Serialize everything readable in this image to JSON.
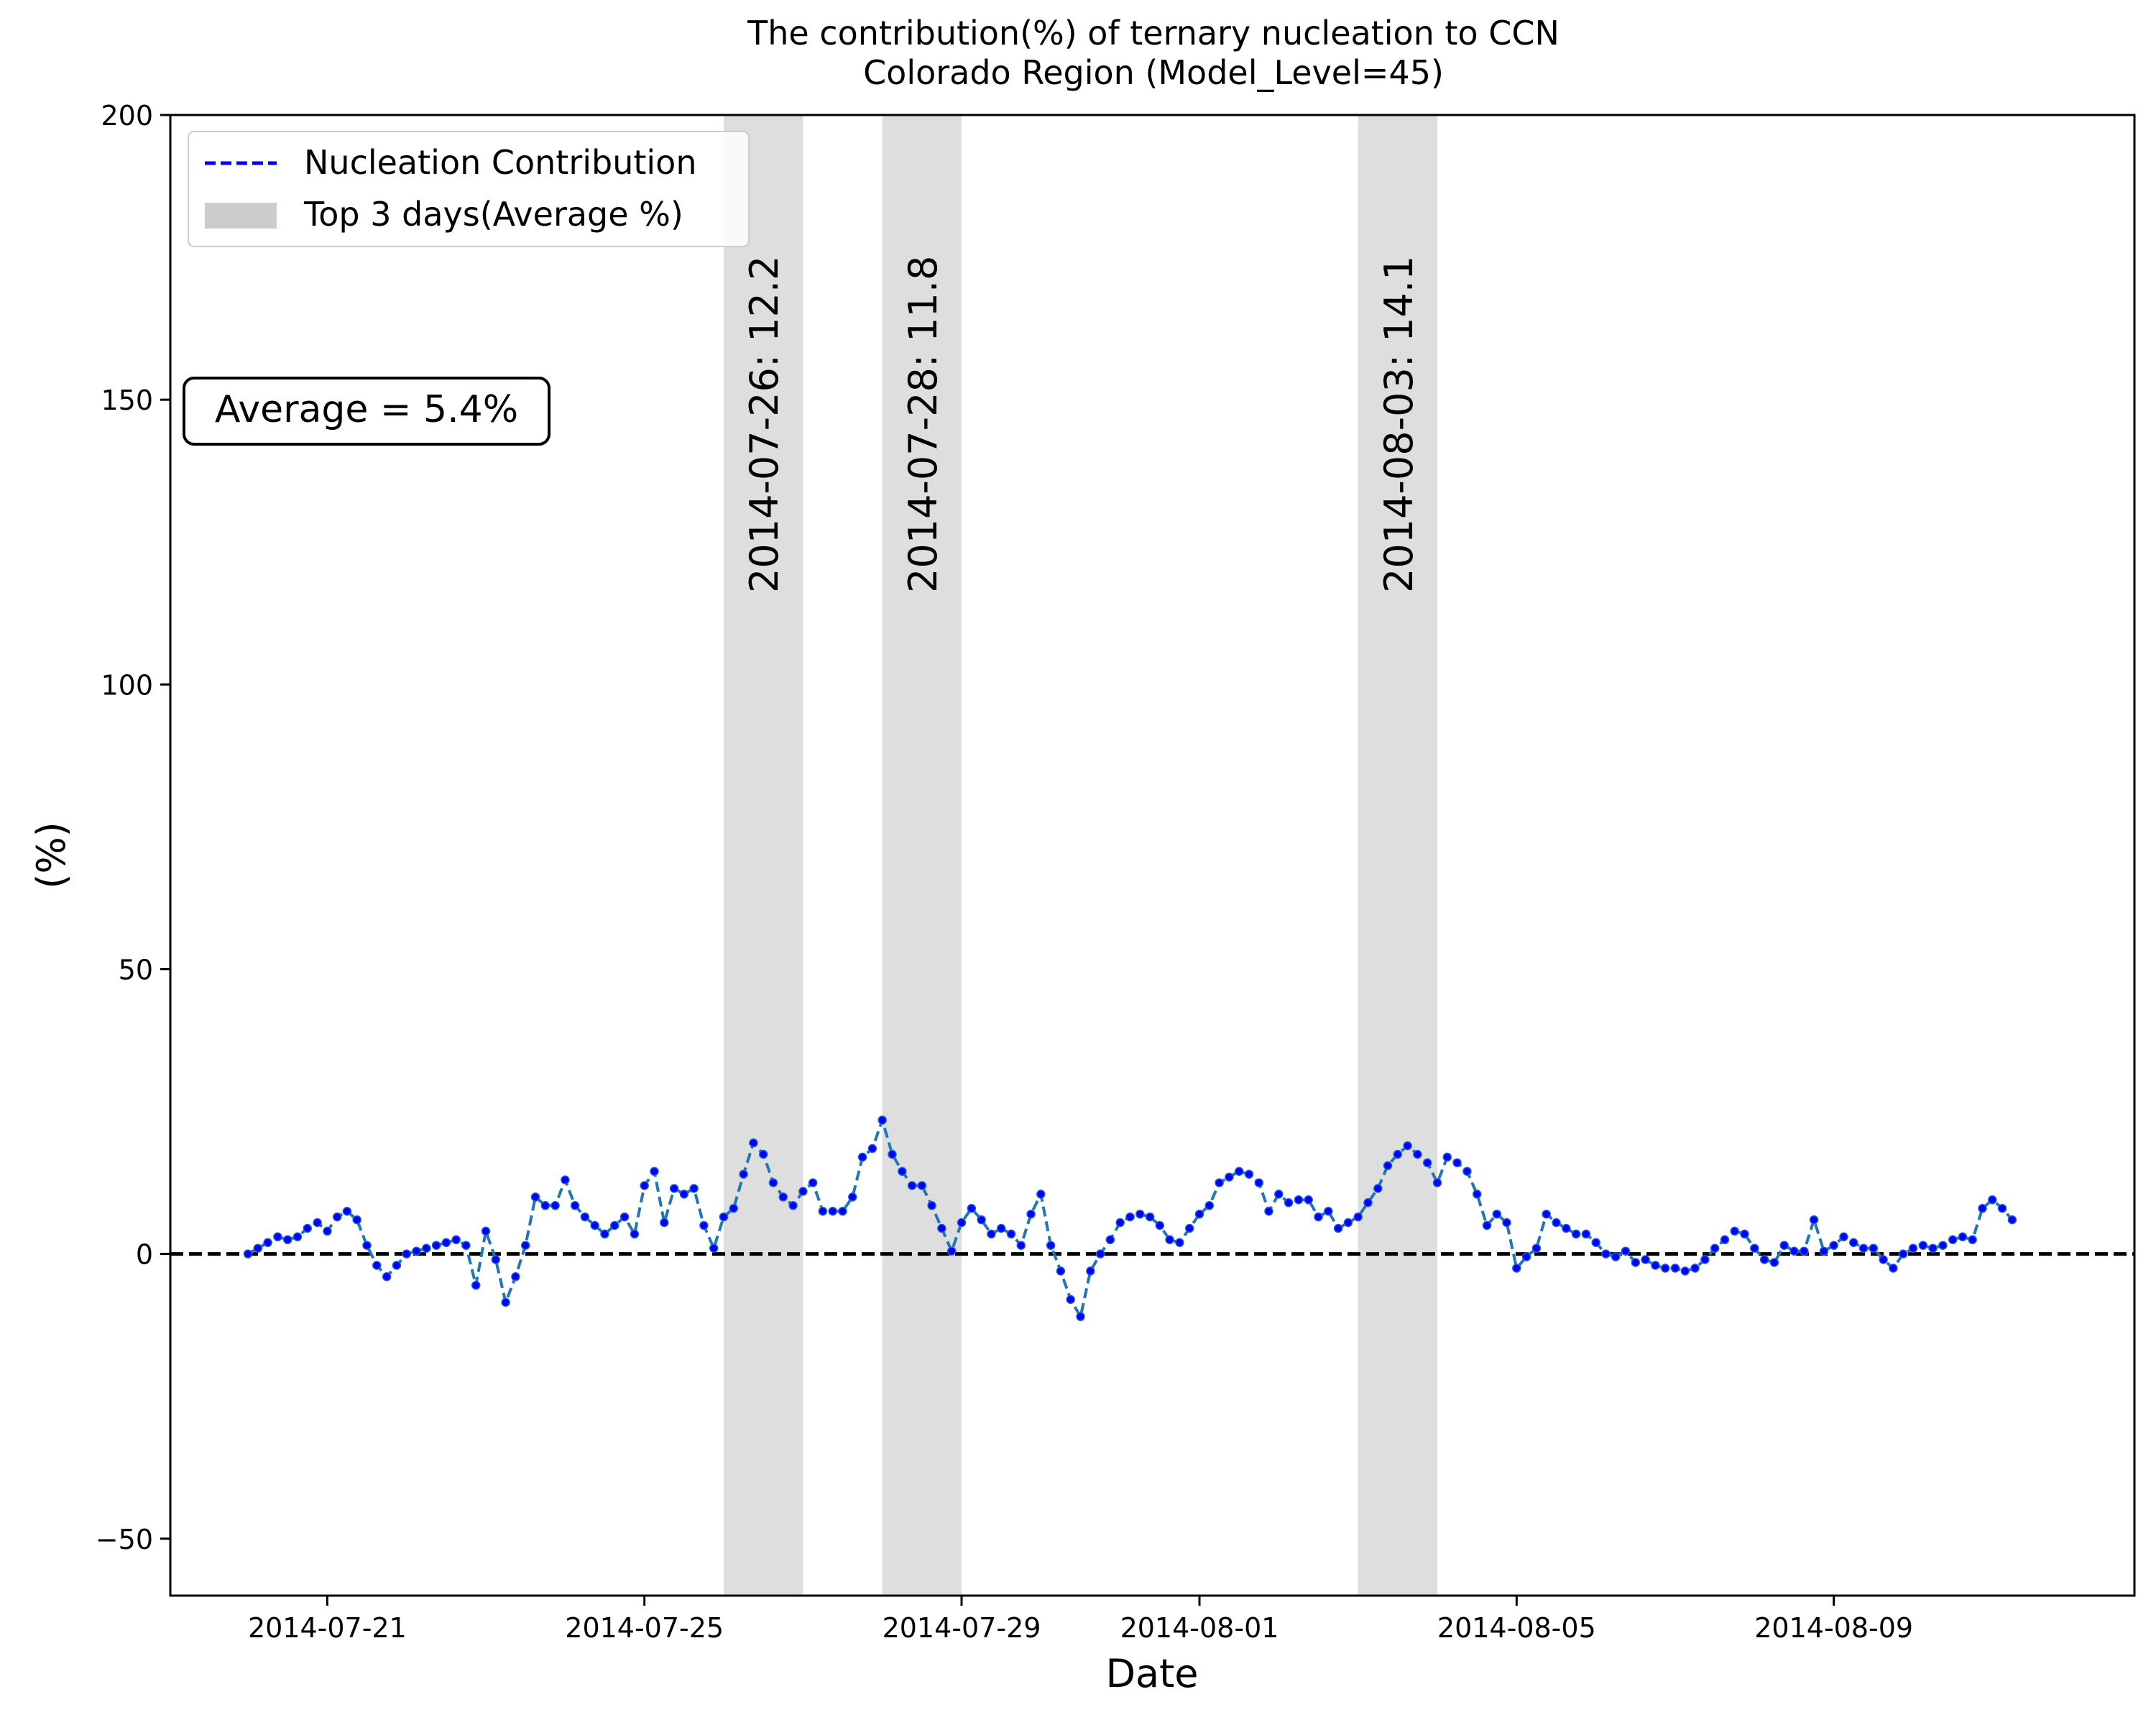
{
  "chart_data": {
    "type": "line",
    "title": "The contribution(%) of ternary nucleation to CCN",
    "subtitle": "Colorado Region (Model_Level=45)",
    "xlabel": "Date",
    "ylabel": "(%)",
    "ylim": [
      -60,
      200
    ],
    "xlim": [
      "2014-07-19 00:30",
      "2014-08-12 19:00"
    ],
    "yticks": [
      -50,
      0,
      50,
      100,
      150,
      200
    ],
    "ytick_labels": [
      "−50",
      "0",
      "50",
      "100",
      "150",
      "200"
    ],
    "xticks": [
      "2014-07-21",
      "2014-07-25",
      "2014-07-29",
      "2014-08-01",
      "2014-08-05",
      "2014-08-09"
    ],
    "grid": false,
    "legend_placement": "top-left",
    "legend": [
      {
        "label": "Nucleation Contribution",
        "kind": "dashed-line",
        "color": "#0000ff"
      },
      {
        "label": "Top 3 days(Average %)",
        "kind": "patch",
        "color": "#cccccc"
      }
    ],
    "reference_line": {
      "y": 0,
      "style": "dashed",
      "color": "#000000"
    },
    "average_label": "Average = 5.4%",
    "colors": {
      "line": "#1f77b4",
      "markers": "#0000ff",
      "span": "#d3d3d3"
    },
    "highlight_days": [
      {
        "date": "2014-07-26",
        "label": "2014-07-26: 12.2"
      },
      {
        "date": "2014-07-28",
        "label": "2014-07-28: 11.8"
      },
      {
        "date": "2014-08-03",
        "label": "2014-08-03: 14.1"
      }
    ],
    "series": [
      {
        "name": "Nucleation Contribution",
        "start": "2014-07-20 00:00",
        "step_hours": 3,
        "values": [
          0,
          1,
          2,
          3,
          2.5,
          3,
          4.5,
          5.5,
          4,
          6.5,
          7.5,
          6,
          1.5,
          -2,
          -4,
          -2,
          0,
          0.5,
          1,
          1.5,
          2,
          2.5,
          1.5,
          -5.5,
          4,
          -1,
          -8.5,
          -4,
          1.5,
          10,
          8.5,
          8.5,
          13,
          8.5,
          6.5,
          5,
          3.5,
          5,
          6.5,
          3.5,
          12,
          14.5,
          5.5,
          11.5,
          10.5,
          11.5,
          5,
          1,
          6.5,
          8,
          14,
          19.5,
          17.5,
          12.5,
          10,
          8.5,
          11,
          12.5,
          7.5,
          7.5,
          7.5,
          10,
          17,
          18.5,
          23.5,
          17.5,
          14.5,
          12,
          12,
          8.5,
          4.5,
          0.5,
          5.5,
          8,
          6,
          3.5,
          4.5,
          3.5,
          1.5,
          7,
          10.5,
          1.5,
          -3,
          -8,
          -11,
          -3,
          0,
          2.5,
          5.5,
          6.5,
          7,
          6.5,
          5,
          2.5,
          2,
          4.5,
          7,
          8.5,
          12.5,
          13.5,
          14.5,
          14,
          12.5,
          7.5,
          10.5,
          9,
          9.5,
          9.5,
          6.5,
          7.5,
          4.5,
          5.5,
          6.5,
          9,
          11.5,
          15.5,
          17.5,
          19,
          17.5,
          16,
          12.5,
          17,
          16,
          14.5,
          10.5,
          5,
          7,
          5.5,
          -2.5,
          -0.5,
          1,
          7,
          5.5,
          4.5,
          3.5,
          3.5,
          2,
          0,
          -0.5,
          0.5,
          -1.5,
          -1,
          -2,
          -2.5,
          -2.5,
          -3,
          -2.5,
          -1,
          1,
          2.5,
          4,
          3.5,
          1,
          -1,
          -1.5,
          1.5,
          0.5,
          0.5,
          6,
          0.5,
          1.5,
          3,
          2,
          1,
          1,
          -1,
          -2.5,
          0,
          1,
          1.5,
          1,
          1.5,
          2.5,
          3,
          2.5,
          8,
          9.5,
          8,
          6
        ]
      }
    ]
  }
}
